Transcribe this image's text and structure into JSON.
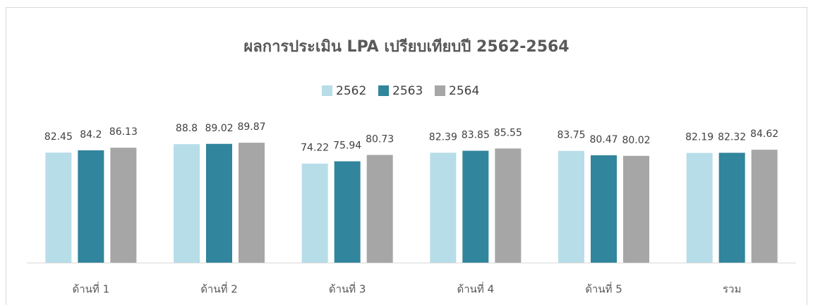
{
  "chart_data": {
    "type": "bar",
    "title": "ผลการประเมิน LPA เปรียบเทียบปี 2562-2564",
    "categories": [
      "ด้านที่ 1",
      "ด้านที่ 2",
      "ด้านที่ 3",
      "ด้านที่ 4",
      "ด้านที่ 5",
      "รวม"
    ],
    "series": [
      {
        "name": "2562",
        "color": "#b7dde8",
        "values": [
          82.45,
          88.8,
          74.22,
          82.39,
          83.75,
          82.19
        ]
      },
      {
        "name": "2563",
        "color": "#31859c",
        "values": [
          84.2,
          89.02,
          75.94,
          83.85,
          80.47,
          82.32
        ]
      },
      {
        "name": "2564",
        "color": "#a6a6a6",
        "values": [
          86.13,
          89.87,
          80.73,
          85.55,
          80.02,
          84.62
        ]
      }
    ],
    "ylim": [
      0,
      100
    ],
    "legend": "top"
  }
}
